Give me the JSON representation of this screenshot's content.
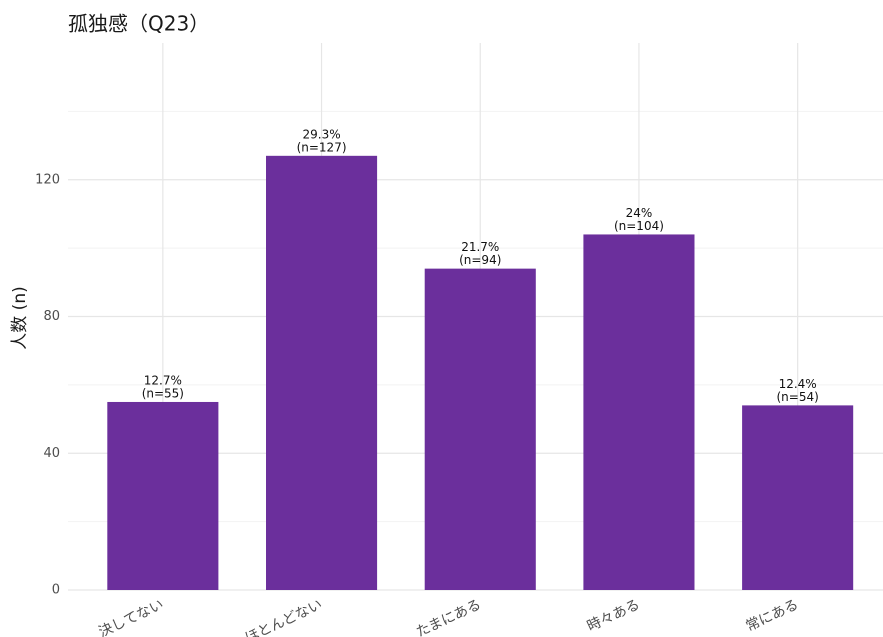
{
  "chart_data": {
    "type": "bar",
    "title": "孤独感（Q23）",
    "y_label": "人数 (n)",
    "categories": [
      "決してない",
      "ほとんどない",
      "たまにある",
      "時々ある",
      "常にある"
    ],
    "values": [
      55,
      127,
      94,
      104,
      54
    ],
    "value_labels": [
      "(n=55)",
      "(n=127)",
      "(n=94)",
      "(n=104)",
      "(n=54)"
    ],
    "percent_labels": [
      "12.7%",
      "29.3%",
      "21.7%",
      "24%",
      "12.4%"
    ],
    "color": "#6b2f9c",
    "ylim": [
      0,
      160
    ],
    "yticks": [
      0,
      40,
      80,
      120
    ],
    "yminor": [
      20,
      60,
      100,
      140
    ],
    "grid": true
  }
}
